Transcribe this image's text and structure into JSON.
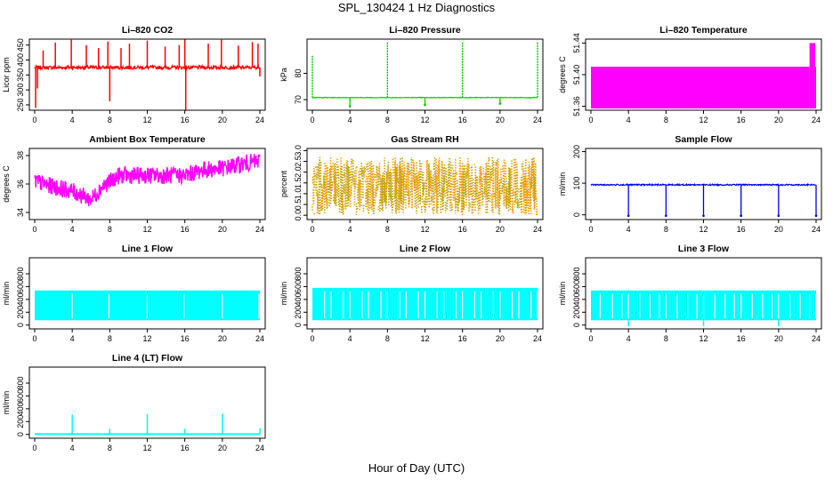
{
  "figure": {
    "title": "SPL_130424  1 Hz Diagnostics",
    "xlabel": "Hour of Day (UTC)"
  },
  "chart_data": [
    {
      "id": "co2",
      "type": "line",
      "title": "Li–820 CO2",
      "ylabel": "Licor ppm",
      "color": "#ff0000",
      "xlim": [
        0,
        24
      ],
      "xticks": [
        0,
        4,
        8,
        12,
        16,
        20,
        24
      ],
      "ylim": [
        232,
        470
      ],
      "yticks": [
        250,
        300,
        350,
        400,
        450
      ],
      "series": [
        {
          "baseline": 375,
          "spread": 6,
          "spikes": [
            {
              "x": 0.1,
              "y": 240
            },
            {
              "x": 0.3,
              "y": 305
            },
            {
              "x": 0.9,
              "y": 432
            },
            {
              "x": 2.2,
              "y": 458
            },
            {
              "x": 3.9,
              "y": 468
            },
            {
              "x": 5.5,
              "y": 450
            },
            {
              "x": 6.8,
              "y": 440
            },
            {
              "x": 7.8,
              "y": 462
            },
            {
              "x": 8.0,
              "y": 262
            },
            {
              "x": 9.2,
              "y": 440
            },
            {
              "x": 10.1,
              "y": 455
            },
            {
              "x": 12.0,
              "y": 465
            },
            {
              "x": 13.9,
              "y": 445
            },
            {
              "x": 15.4,
              "y": 450
            },
            {
              "x": 16.0,
              "y": 470
            },
            {
              "x": 16.1,
              "y": 232
            },
            {
              "x": 18.5,
              "y": 455
            },
            {
              "x": 19.9,
              "y": 468
            },
            {
              "x": 21.7,
              "y": 448
            },
            {
              "x": 23.2,
              "y": 460
            },
            {
              "x": 23.8,
              "y": 455
            },
            {
              "x": 24.0,
              "y": 345
            }
          ]
        }
      ]
    },
    {
      "id": "pressure",
      "type": "line",
      "title": "Li–820 Pressure",
      "ylabel": "kPa",
      "color": "#00cc00",
      "xlim": [
        0,
        24
      ],
      "xticks": [
        0,
        4,
        8,
        12,
        16,
        20,
        24
      ],
      "ylim": [
        66,
        93
      ],
      "yticks": [
        70,
        80
      ],
      "series": [
        {
          "baseline": 70.8,
          "spread": 0.1,
          "spikes": [
            {
              "x": 0.0,
              "y": 87
            },
            {
              "x": 8.0,
              "y": 92
            },
            {
              "x": 16.0,
              "y": 92
            },
            {
              "x": 24.0,
              "y": 92
            }
          ],
          "dips": [
            {
              "x": 4.0,
              "y": 67.5
            },
            {
              "x": 12.0,
              "y": 68
            },
            {
              "x": 20.0,
              "y": 68.5
            }
          ]
        }
      ]
    },
    {
      "id": "temp820",
      "type": "area",
      "title": "Li–820 Temperature",
      "ylabel": "degrees C",
      "color": "#ff00ff",
      "xlim": [
        0,
        24
      ],
      "xticks": [
        0,
        4,
        8,
        12,
        16,
        20,
        24
      ],
      "ylim": [
        51.355,
        51.445
      ],
      "yticks": [
        51.36,
        51.4,
        51.44
      ],
      "series": [
        {
          "segments": [
            {
              "x0": 0,
              "x1": 23.3,
              "y": 51.41
            },
            {
              "x0": 23.3,
              "x1": 23.9,
              "y": 51.44
            },
            {
              "x0": 23.9,
              "x1": 24,
              "y": 51.41
            }
          ]
        }
      ]
    },
    {
      "id": "boxtemp",
      "type": "line",
      "title": "Ambient Box Temperature",
      "ylabel": "degrees C",
      "color": "#ff00ff",
      "xlim": [
        0,
        24
      ],
      "xticks": [
        0,
        4,
        8,
        12,
        16,
        20,
        24
      ],
      "ylim": [
        33.5,
        38.5
      ],
      "yticks": [
        34,
        36,
        38
      ],
      "series": [
        {
          "trend": [
            [
              0,
              36.2
            ],
            [
              2,
              35.8
            ],
            [
              4,
              35.5
            ],
            [
              6,
              34.9
            ],
            [
              7.2,
              35.8
            ],
            [
              9,
              36.6
            ],
            [
              12,
              36.6
            ],
            [
              16,
              36.6
            ],
            [
              18,
              37.0
            ],
            [
              20,
              37.1
            ],
            [
              22,
              37.4
            ],
            [
              24,
              37.6
            ]
          ],
          "spread": 0.6
        }
      ]
    },
    {
      "id": "rh",
      "type": "scatter",
      "title": "Gas Stream RH",
      "ylabel": "percent",
      "color": "#ff9900",
      "color2": "#b8a000",
      "xlim": [
        0,
        24
      ],
      "xticks": [
        0,
        4,
        8,
        12,
        16,
        20,
        24
      ],
      "ylim": [
        -0.2,
        3.1
      ],
      "yticks": [
        0.0,
        0.5,
        1.0,
        1.5,
        2.0,
        2.5,
        3.0
      ],
      "series": [
        {
          "mean": 1.35,
          "spread": 1.35
        }
      ]
    },
    {
      "id": "sampleflow",
      "type": "line",
      "title": "Sample Flow",
      "ylabel": "ml/min",
      "color": "#0000ee",
      "xlim": [
        0,
        24
      ],
      "xticks": [
        0,
        4,
        8,
        12,
        16,
        20,
        24
      ],
      "ylim": [
        -15,
        210
      ],
      "yticks": [
        0,
        100,
        200
      ],
      "series": [
        {
          "baseline": 95,
          "spread": 2,
          "dips": [
            {
              "x": 4.0,
              "y": -3
            },
            {
              "x": 8.0,
              "y": -3
            },
            {
              "x": 12.0,
              "y": -3
            },
            {
              "x": 16.0,
              "y": -3
            },
            {
              "x": 20.0,
              "y": -3
            },
            {
              "x": 24.0,
              "y": -3
            }
          ]
        }
      ]
    },
    {
      "id": "line1",
      "type": "area",
      "title": "Line 1 Flow",
      "ylabel": "ml/min",
      "color": "#00ffff",
      "xlim": [
        0,
        24
      ],
      "xticks": [
        0,
        4,
        8,
        12,
        16,
        20,
        24
      ],
      "ylim": [
        -60,
        1050
      ],
      "yticks": [
        0,
        200,
        400,
        600,
        800
      ],
      "series": [
        {
          "low": 75,
          "high": 540,
          "gaps": [
            4.0,
            7.9,
            12.0,
            15.9,
            20.0,
            23.9
          ]
        }
      ]
    },
    {
      "id": "line2",
      "type": "area",
      "title": "Line 2 Flow",
      "ylabel": "ml/min",
      "color": "#00ffff",
      "xlim": [
        0,
        24
      ],
      "xticks": [
        0,
        4,
        8,
        12,
        16,
        20,
        24
      ],
      "ylim": [
        -60,
        1050
      ],
      "yticks": [
        0,
        200,
        400,
        600,
        800
      ],
      "series": [
        {
          "low": 75,
          "high": 580,
          "gaps": [
            1.3,
            2.0,
            3.3,
            4.0,
            5.3,
            6.0,
            7.3,
            8.0,
            9.3,
            10.0,
            11.3,
            12.0,
            13.3,
            14.0,
            15.3,
            16.0,
            17.3,
            18.0,
            19.3,
            20.0,
            21.3,
            22.0,
            23.3,
            24.0
          ]
        }
      ]
    },
    {
      "id": "line3",
      "type": "area",
      "title": "Line 3 Flow",
      "ylabel": "ml/min",
      "color": "#00ffff",
      "xlim": [
        0,
        24
      ],
      "xticks": [
        0,
        4,
        8,
        12,
        16,
        20,
        24
      ],
      "ylim": [
        -60,
        1050
      ],
      "yticks": [
        0,
        200,
        400,
        600,
        800
      ],
      "series": [
        {
          "low": 75,
          "high": 540,
          "gaps": [
            1.0,
            2.3,
            3.3,
            4.0,
            5.2,
            6.3,
            7.3,
            8.0,
            9.2,
            10.3,
            11.3,
            12.0,
            13.2,
            14.3,
            15.3,
            16.0,
            17.2,
            18.3,
            19.3,
            20.0,
            21.2,
            22.3,
            23.3,
            24.0
          ],
          "dips": [
            4.0,
            12.0,
            20.0
          ]
        }
      ]
    },
    {
      "id": "line4",
      "type": "line",
      "title": "Line 4 (LT) Flow",
      "ylabel": "ml/min",
      "color": "#00ffff",
      "xlim": [
        0,
        24
      ],
      "xticks": [
        0,
        4,
        8,
        12,
        16,
        20,
        24
      ],
      "ylim": [
        -60,
        1050
      ],
      "yticks": [
        0,
        200,
        400,
        600,
        800
      ],
      "series": [
        {
          "baseline": 5,
          "spikes": [
            {
              "x": 4.0,
              "y": 310
            },
            {
              "x": 8.0,
              "y": 90
            },
            {
              "x": 12.0,
              "y": 320
            },
            {
              "x": 16.0,
              "y": 90
            },
            {
              "x": 20.0,
              "y": 320
            },
            {
              "x": 24.0,
              "y": 95
            }
          ]
        }
      ]
    }
  ]
}
